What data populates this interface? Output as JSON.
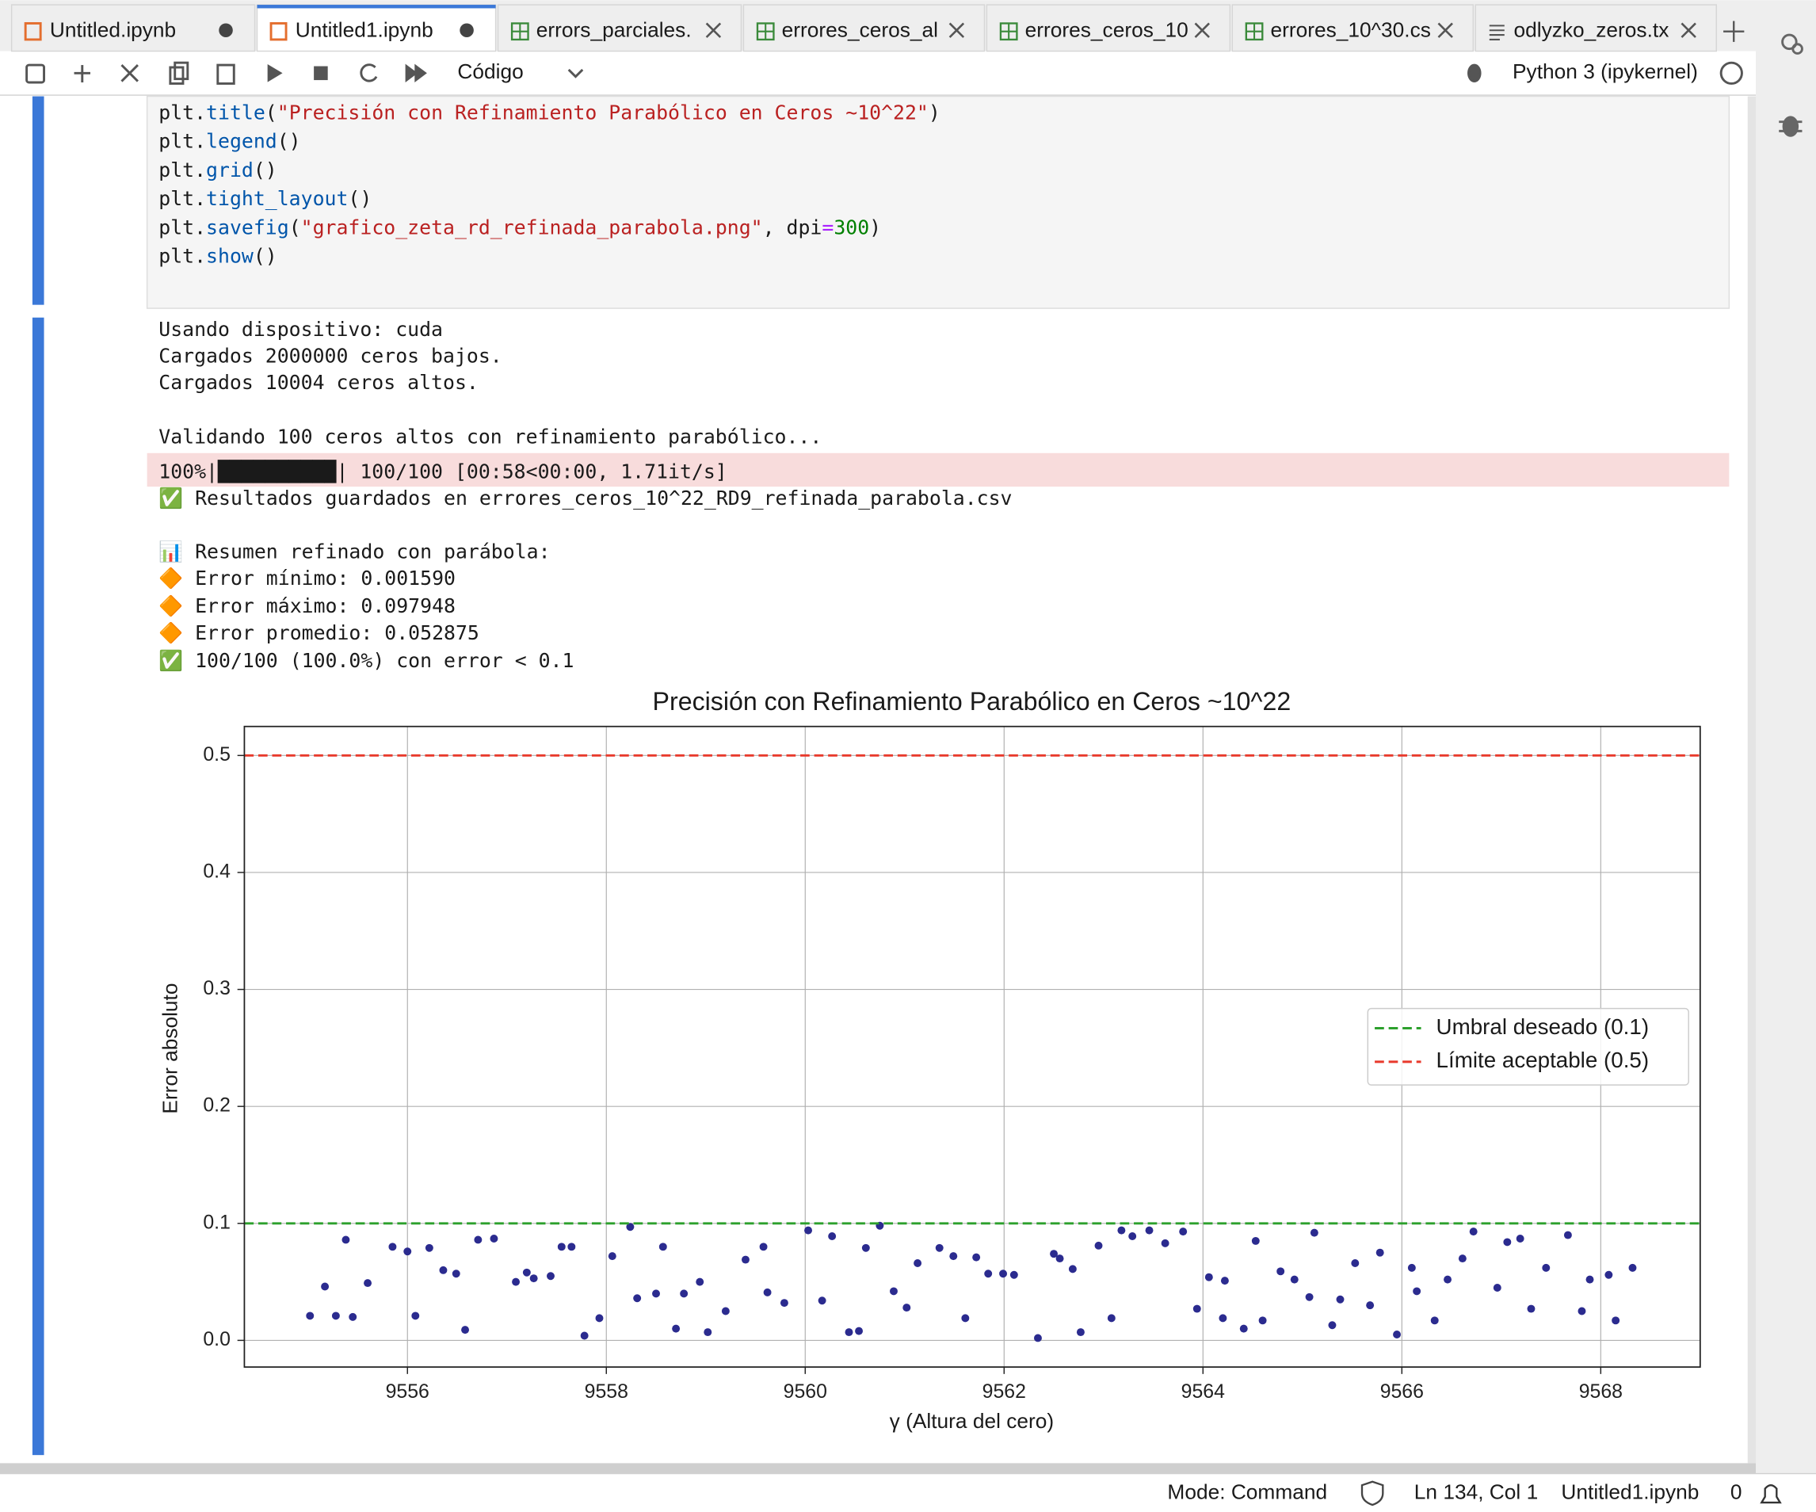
{
  "tabs": [
    "Untitled.ipynb",
    "Untitled1.ipynb",
    "errors_parciales.",
    "errores_ceros_al",
    "errores_ceros_10",
    "errores_10^30.cs",
    "odlyzko_zeros.tx"
  ],
  "toolbar": {
    "cell_type": "Código",
    "kernel": "Python 3 (ipykernel)"
  },
  "code": [
    "plt.title(\"Precisión con Refinamiento Parabólico en Ceros ~10^22\")",
    "plt.legend()",
    "plt.grid()",
    "plt.tight_layout()",
    "plt.savefig(\"grafico_zeta_rd_refinada_parabola.png\", dpi=300)",
    "plt.show()"
  ],
  "output": {
    "lines_before": [
      "Usando dispositivo: cuda",
      "Cargados 2000000 ceros bajos.",
      "Cargados 10004 ceros altos.",
      "Validando 100 ceros altos con refinamiento parabólico..."
    ],
    "progress": "100%|██████████| 100/100 [00:58<00:00,  1.71it/s]",
    "lines_after": [
      "✅ Resultados guardados en errores_ceros_10^22_RD9_refinada_parabola.csv",
      "📊 Resumen refinado con parábola:",
      "🔶 Error mínimo:  0.001590",
      "🔶 Error máximo:  0.097948",
      "🔶 Error promedio: 0.052875",
      "✅ 100/100 (100.0%) con error < 0.1"
    ]
  },
  "chart_data": {
    "type": "scatter",
    "title": "Precisión con Refinamiento Parabólico en Ceros ~10^22",
    "xlabel": "γ (Altura del cero)",
    "ylabel": "Error absoluto",
    "color": "#2b2b8f",
    "x": [
      9555.02,
      9555.17,
      9555.28,
      9555.38,
      9555.45,
      9555.6,
      9555.85,
      9556.0,
      9556.08,
      9556.22,
      9556.36,
      9556.49,
      9556.58,
      9556.71,
      9556.87,
      9557.09,
      9557.2,
      9557.27,
      9557.44,
      9557.55,
      9557.65,
      9557.78,
      9557.93,
      9558.06,
      9558.24,
      9558.31,
      9558.5,
      9558.57,
      9558.7,
      9558.78,
      9558.94,
      9559.02,
      9559.2,
      9559.4,
      9559.58,
      9559.62,
      9559.79,
      9560.03,
      9560.17,
      9560.27,
      9560.44,
      9560.54,
      9560.61,
      9560.75,
      9560.89,
      9561.02,
      9561.13,
      9561.35,
      9561.49,
      9561.61,
      9561.72,
      9561.84,
      9561.99,
      9562.1,
      9562.34,
      9562.5,
      9562.56,
      9562.69,
      9562.77,
      9562.95,
      9563.08,
      9563.18,
      9563.29,
      9563.46,
      9563.62,
      9563.8,
      9563.94,
      9564.06,
      9564.2,
      9564.22,
      9564.41,
      9564.53,
      9564.6,
      9564.78,
      9564.92,
      9565.07,
      9565.12,
      9565.3,
      9565.38,
      9565.53,
      9565.68,
      9565.78,
      9565.95,
      9566.1,
      9566.15,
      9566.33,
      9566.46,
      9566.61,
      9566.72,
      9566.96,
      9567.06,
      9567.19,
      9567.3,
      9567.45,
      9567.67,
      9567.81,
      9567.89,
      9568.08,
      9568.15,
      9568.32
    ],
    "values": [
      0.021,
      0.046,
      0.021,
      0.086,
      0.02,
      0.049,
      0.08,
      0.076,
      0.021,
      0.079,
      0.06,
      0.057,
      0.009,
      0.086,
      0.087,
      0.05,
      0.058,
      0.053,
      0.055,
      0.08,
      0.08,
      0.004,
      0.019,
      0.072,
      0.097,
      0.036,
      0.04,
      0.08,
      0.01,
      0.04,
      0.05,
      0.007,
      0.025,
      0.069,
      0.08,
      0.041,
      0.032,
      0.094,
      0.034,
      0.089,
      0.007,
      0.008,
      0.079,
      0.098,
      0.042,
      0.028,
      0.066,
      0.079,
      0.072,
      0.019,
      0.071,
      0.057,
      0.057,
      0.056,
      0.002,
      0.074,
      0.07,
      0.061,
      0.007,
      0.081,
      0.019,
      0.094,
      0.089,
      0.094,
      0.083,
      0.093,
      0.027,
      0.054,
      0.019,
      0.051,
      0.01,
      0.085,
      0.017,
      0.059,
      0.052,
      0.037,
      0.092,
      0.013,
      0.035,
      0.066,
      0.03,
      0.075,
      0.005,
      0.062,
      0.042,
      0.017,
      0.052,
      0.07,
      0.093,
      0.045,
      0.084,
      0.087,
      0.027,
      0.062,
      0.09,
      0.025,
      0.052,
      0.056,
      0.017,
      0.062
    ],
    "reference_lines": [
      {
        "name": "Umbral deseado (0.1)",
        "value": 0.1,
        "color": "#2ca02c"
      },
      {
        "name": "Límite aceptable (0.5)",
        "value": 0.5,
        "color": "#e8392b"
      }
    ],
    "xlim": [
      9554.36,
      9569.0
    ],
    "ylim": [
      -0.0228,
      0.5248
    ],
    "xticks": [
      9556,
      9558,
      9560,
      9562,
      9564,
      9566,
      9568
    ],
    "yticks": [
      {
        "value": 0,
        "label": "0.0"
      },
      0.1,
      0.2,
      0.3,
      0.4,
      0.5
    ],
    "grid": true,
    "legend": "center right"
  },
  "status": {
    "mode": "Mode: Command",
    "position": "Ln 134, Col 1",
    "file": "Untitled1.ipynb",
    "notifications": "0"
  }
}
